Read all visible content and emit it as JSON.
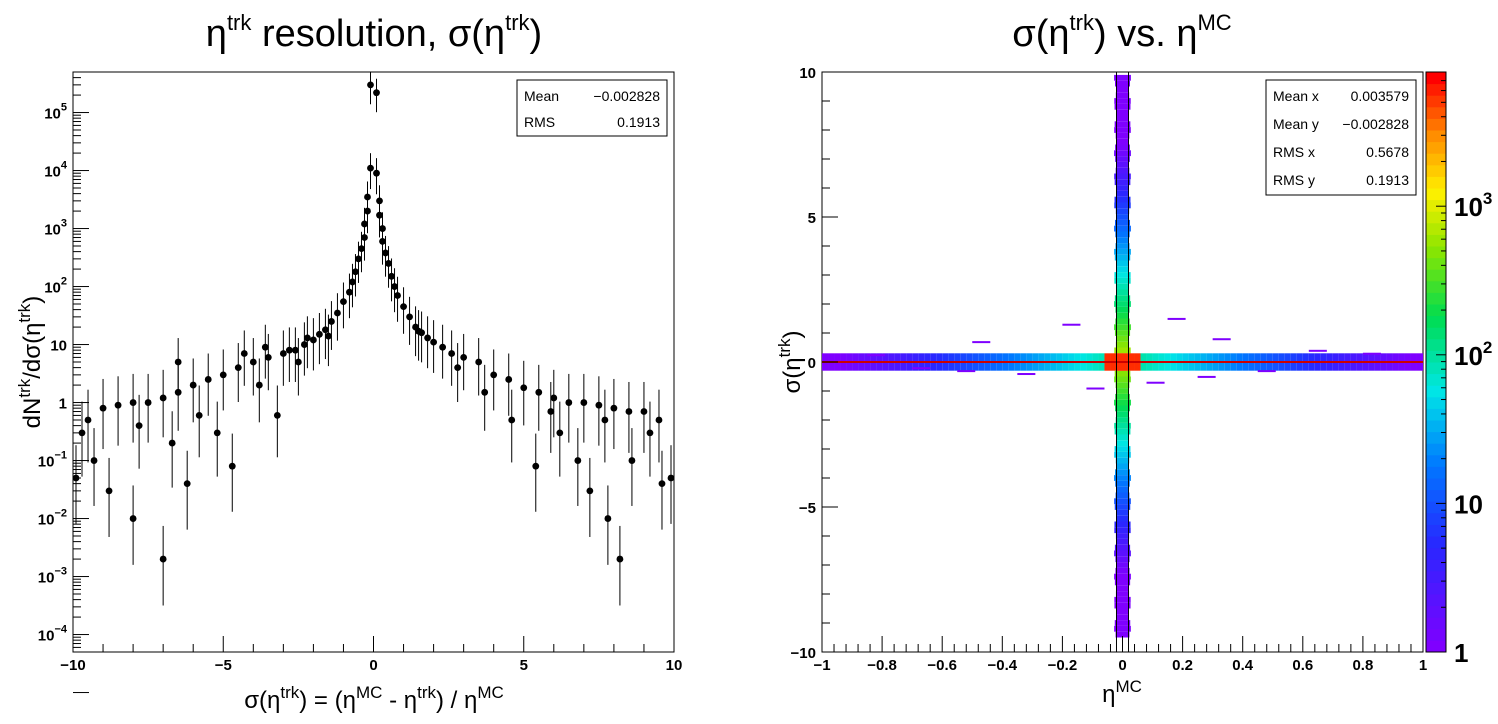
{
  "chart_data": [
    {
      "type": "scatter",
      "title": {
        "base": "η",
        "sup": "trk",
        "mid": " resolution, σ(η",
        "sup2": "trk",
        "end": ")"
      },
      "xlabel": {
        "p1": "σ(η",
        "s1": "trk",
        "p2": ") = (η",
        "s2": "MC",
        "p3": " - η",
        "s3": "trk",
        "p4": ") / η",
        "s4": "MC"
      },
      "ylabel": {
        "p1": "dN",
        "s1": "trk",
        "p2": "/dσ(η",
        "s2": "trk",
        "p3": ")"
      },
      "xlim": [
        -10,
        10
      ],
      "ylim": [
        5e-05,
        500000
      ],
      "log_y": true,
      "x_ticks": [
        "−10",
        "−5",
        "0",
        "5",
        "10"
      ],
      "y_ticks": [
        {
          "base": "10",
          "exp": "5"
        },
        {
          "base": "10",
          "exp": "4"
        },
        {
          "base": "10",
          "exp": "3"
        },
        {
          "base": "10",
          "exp": "2"
        },
        {
          "base": "10",
          "exp": ""
        },
        {
          "base": "1",
          "exp": ""
        },
        {
          "base": "10",
          "exp": "−1"
        },
        {
          "base": "10",
          "exp": "−2"
        },
        {
          "base": "10",
          "exp": "−3"
        },
        {
          "base": "10",
          "exp": "−4"
        }
      ],
      "stats": [
        {
          "label": "Mean",
          "value": "−0.002828"
        },
        {
          "label": "RMS",
          "value": "0.1913"
        }
      ],
      "series": [
        {
          "points": [
            [
              -0.1,
              300000
            ],
            [
              0.1,
              220000
            ],
            [
              -0.1,
              11000
            ],
            [
              0.1,
              9000
            ],
            [
              -0.2,
              3500
            ],
            [
              0.2,
              3000
            ],
            [
              -0.2,
              2000
            ],
            [
              0.2,
              1700
            ],
            [
              -0.3,
              1200
            ],
            [
              0.3,
              1000
            ],
            [
              -0.3,
              700
            ],
            [
              0.3,
              600
            ],
            [
              -0.4,
              450
            ],
            [
              0.4,
              380
            ],
            [
              -0.5,
              300
            ],
            [
              0.5,
              250
            ],
            [
              -0.6,
              180
            ],
            [
              0.6,
              150
            ],
            [
              -0.7,
              120
            ],
            [
              0.7,
              100
            ],
            [
              -0.8,
              80
            ],
            [
              0.8,
              70
            ],
            [
              -1.0,
              55
            ],
            [
              1.0,
              45
            ],
            [
              -1.2,
              35
            ],
            [
              1.2,
              30
            ],
            [
              -1.4,
              25
            ],
            [
              1.4,
              20
            ],
            [
              -1.6,
              18
            ],
            [
              1.6,
              16
            ],
            [
              -1.8,
              15
            ],
            [
              1.8,
              13
            ],
            [
              -2.0,
              12
            ],
            [
              2.0,
              11
            ],
            [
              -2.3,
              10
            ],
            [
              2.3,
              9
            ],
            [
              -2.6,
              8
            ],
            [
              2.6,
              7
            ],
            [
              -3.0,
              7
            ],
            [
              3.0,
              6
            ],
            [
              -3.5,
              6
            ],
            [
              3.5,
              5
            ],
            [
              -4.0,
              5
            ],
            [
              4.0,
              3
            ],
            [
              -4.5,
              4
            ],
            [
              4.5,
              2.5
            ],
            [
              -5.0,
              3
            ],
            [
              5.0,
              1.8
            ],
            [
              -5.5,
              2.5
            ],
            [
              5.5,
              1.5
            ],
            [
              -6.0,
              2
            ],
            [
              6.0,
              1.2
            ],
            [
              -6.5,
              1.5
            ],
            [
              6.5,
              1.0
            ],
            [
              -7.0,
              1.2
            ],
            [
              7.0,
              1.0
            ],
            [
              -7.5,
              1.0
            ],
            [
              7.5,
              0.9
            ],
            [
              -8.0,
              1.0
            ],
            [
              8.0,
              0.8
            ],
            [
              -8.5,
              0.9
            ],
            [
              8.5,
              0.7
            ],
            [
              -9.0,
              0.8
            ],
            [
              9.0,
              0.7
            ],
            [
              -9.5,
              0.5
            ],
            [
              9.5,
              0.5
            ],
            [
              -9.9,
              0.05
            ],
            [
              9.9,
              0.05
            ],
            [
              -8.0,
              0.01
            ],
            [
              7.8,
              0.01
            ],
            [
              -7.0,
              0.002
            ],
            [
              8.2,
              0.002
            ],
            [
              -9.7,
              0.3
            ],
            [
              -9.3,
              0.1
            ],
            [
              -8.8,
              0.03
            ],
            [
              -6.7,
              0.2
            ],
            [
              -5.2,
              0.3
            ],
            [
              -4.7,
              0.08
            ],
            [
              -3.2,
              0.6
            ],
            [
              -6.2,
              0.04
            ],
            [
              6.2,
              0.3
            ],
            [
              6.8,
              0.1
            ],
            [
              7.2,
              0.03
            ],
            [
              8.6,
              0.1
            ],
            [
              9.2,
              0.3
            ],
            [
              9.6,
              0.04
            ],
            [
              5.4,
              0.08
            ],
            [
              4.6,
              0.5
            ],
            [
              -1.5,
              14
            ],
            [
              1.5,
              17
            ],
            [
              -2.5,
              5
            ],
            [
              2.8,
              4
            ],
            [
              -3.8,
              2
            ],
            [
              3.7,
              1.5
            ],
            [
              -5.8,
              0.6
            ],
            [
              5.9,
              0.7
            ],
            [
              -7.8,
              0.4
            ],
            [
              7.7,
              0.5
            ],
            [
              -6.5,
              5
            ],
            [
              -4.3,
              7
            ],
            [
              -3.6,
              9
            ],
            [
              -2.8,
              8
            ],
            [
              -2.2,
              13
            ]
          ]
        }
      ]
    },
    {
      "type": "heatmap",
      "title": {
        "p1": "σ(η",
        "s1": "trk",
        "p2": ") vs. η",
        "s2": "MC"
      },
      "xlabel": {
        "base": "η",
        "sup": "MC"
      },
      "ylabel": {
        "p1": "σ(η",
        "s1": "trk",
        "p2": ")"
      },
      "xlim": [
        -1,
        1
      ],
      "ylim": [
        -10,
        10
      ],
      "x_ticks": [
        "−1",
        "−0.8",
        "−0.6",
        "−0.4",
        "−0.2",
        "0",
        "0.2",
        "0.4",
        "0.6",
        "0.8",
        "1"
      ],
      "y_ticks": [
        "10",
        "5",
        "0",
        "−5",
        "−10"
      ],
      "colorbar": {
        "log": true,
        "range": [
          1,
          8000
        ],
        "ticks": [
          {
            "base": "10",
            "exp": "3"
          },
          {
            "base": "10",
            "exp": "2"
          },
          {
            "base": "10",
            "exp": ""
          },
          {
            "base": "1",
            "exp": ""
          }
        ]
      },
      "stats": [
        {
          "label": "Mean x",
          "value": "0.003579"
        },
        {
          "label": "Mean y",
          "value": "−0.002828"
        },
        {
          "label": "RMS x",
          "value": "0.5678"
        },
        {
          "label": "RMS y",
          "value": "0.1913"
        }
      ],
      "vertical_band": {
        "x": [
          -0.02,
          0.02
        ],
        "y": [
          -9.5,
          9.8
        ]
      },
      "horizontal_band": {
        "x": [
          -1,
          1
        ],
        "y": [
          -0.3,
          0.3
        ]
      },
      "colors": {
        "line": "#cc0000",
        "low": "#7f00ff",
        "high": "#ff0000"
      }
    }
  ]
}
